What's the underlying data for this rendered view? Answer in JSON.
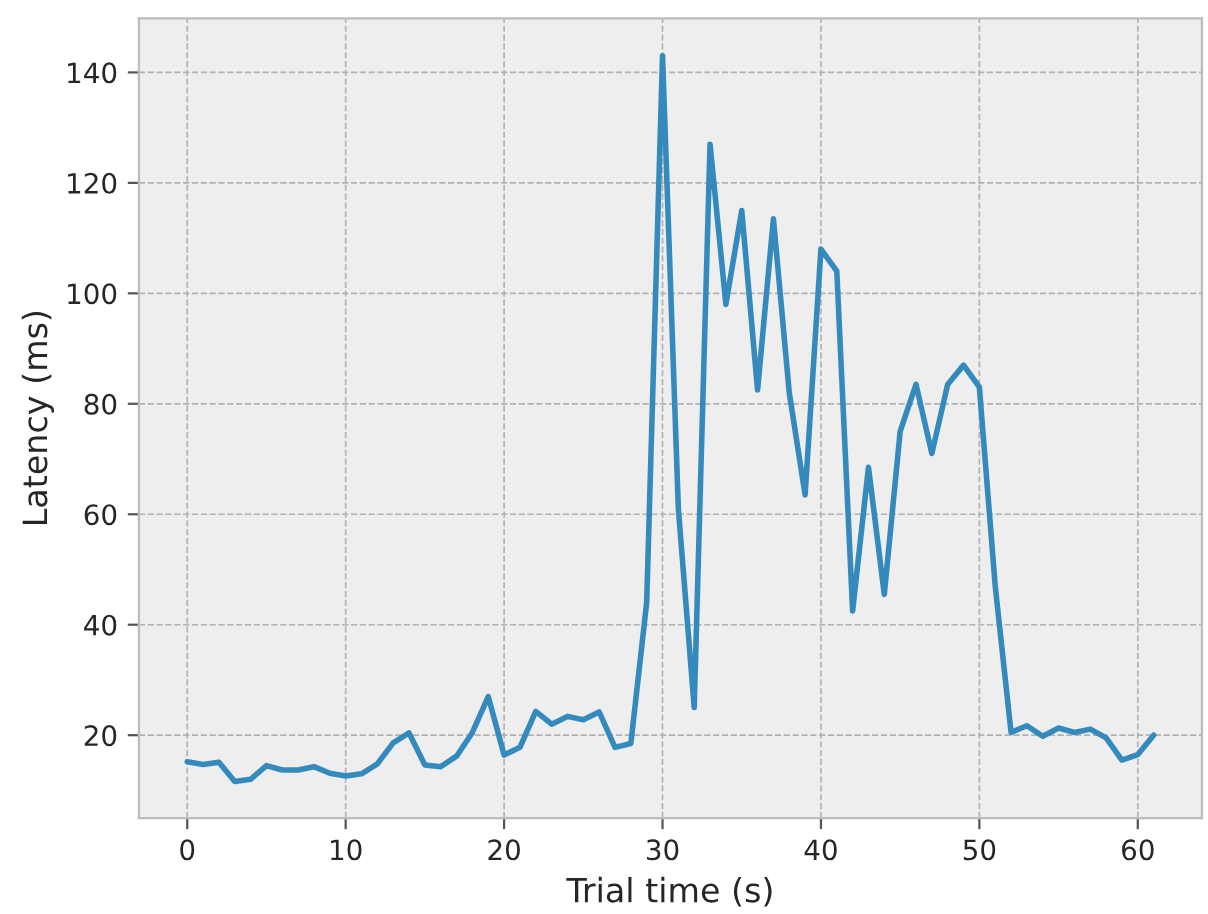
{
  "chart_data": {
    "type": "line",
    "xlabel": "Trial time (s)",
    "ylabel": "Latency (ms)",
    "x": [
      0,
      1,
      2,
      3,
      4,
      5,
      6,
      7,
      8,
      9,
      10,
      11,
      12,
      13,
      14,
      15,
      16,
      17,
      18,
      19,
      20,
      21,
      22,
      23,
      24,
      25,
      26,
      27,
      28,
      29,
      30,
      31,
      32,
      33,
      34,
      35,
      36,
      37,
      38,
      39,
      40,
      41,
      42,
      43,
      44,
      45,
      46,
      47,
      48,
      49,
      50,
      51,
      52,
      53,
      54,
      55,
      56,
      57,
      58,
      59,
      60,
      61
    ],
    "series": [
      {
        "color": "#348abd",
        "values": [
          15.2,
          14.7,
          15.1,
          11.6,
          12,
          14.5,
          13.7,
          13.7,
          14.3,
          13.1,
          12.6,
          13,
          14.8,
          18.6,
          20.4,
          14.6,
          14.3,
          16.2,
          20.5,
          27,
          16.4,
          17.8,
          24.3,
          22,
          23.4,
          22.8,
          24.2,
          17.8,
          18.5,
          44,
          143,
          61,
          25,
          127,
          98,
          115,
          82.5,
          113.5,
          82,
          63.5,
          108,
          104,
          42.5,
          68.5,
          45.5,
          75,
          83.5,
          71,
          83.5,
          87,
          83,
          47,
          20.5,
          21.7,
          19.8,
          21.3,
          20.5,
          21.1,
          19.5,
          15.5,
          16.5,
          20
        ]
      }
    ],
    "xlim": [
      -3.05,
      64.05
    ],
    "ylim": [
      5,
      149.8
    ],
    "xticks": [
      0,
      10,
      20,
      30,
      40,
      50,
      60
    ],
    "yticks": [
      20,
      40,
      60,
      80,
      100,
      120,
      140
    ],
    "grid": true,
    "line_style": "solid",
    "marker": "none"
  }
}
